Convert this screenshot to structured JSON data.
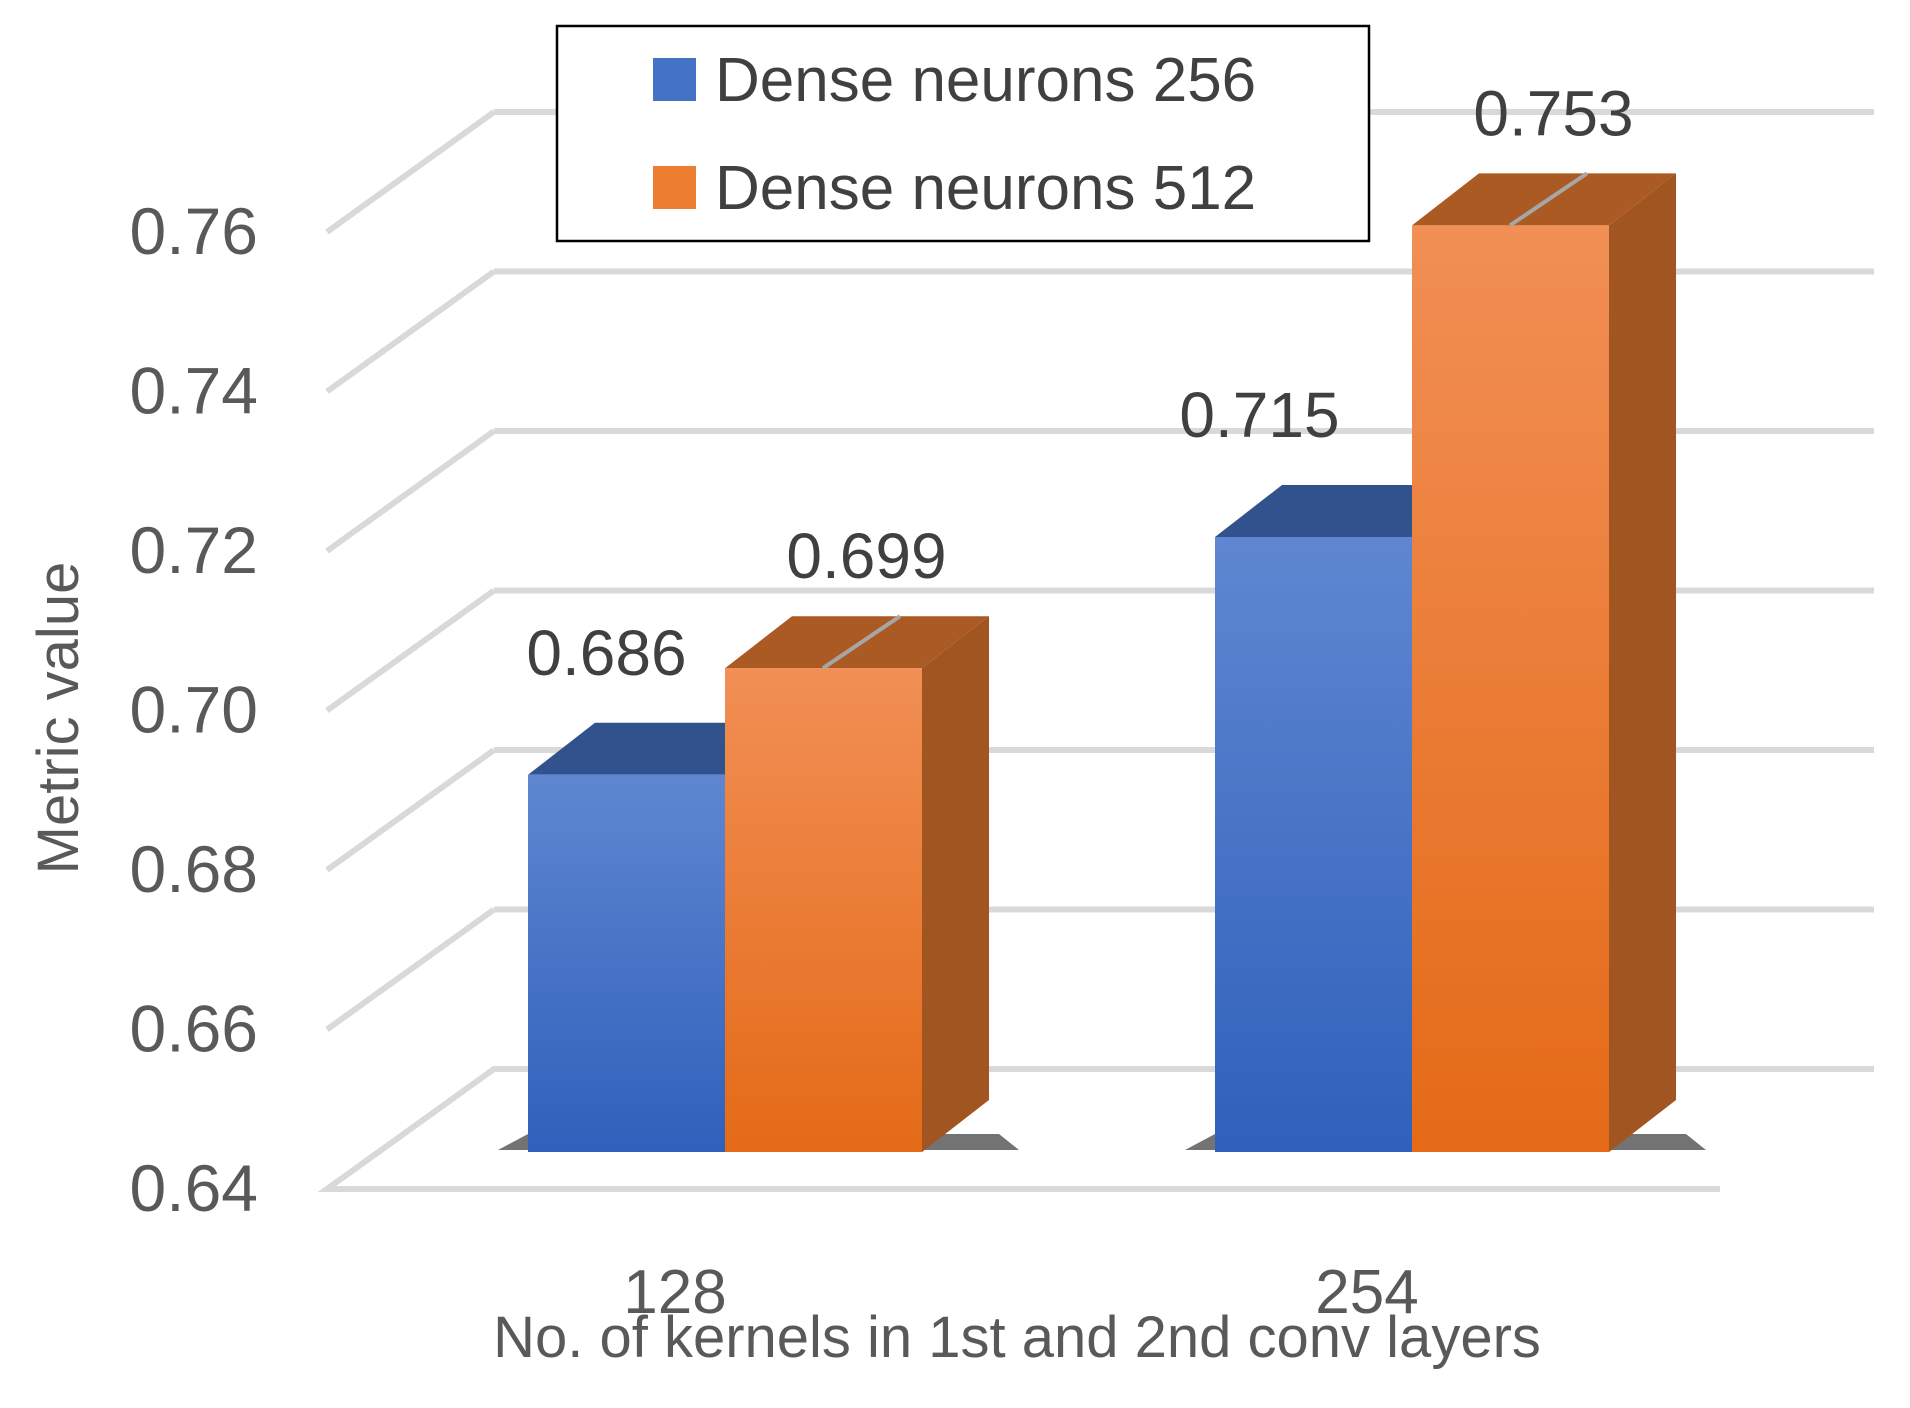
{
  "chart_data": {
    "type": "bar",
    "categories": [
      "128",
      "254"
    ],
    "series": [
      {
        "name": "Dense neurons 256",
        "values": [
          0.686,
          0.715
        ],
        "color": "#4472c4"
      },
      {
        "name": "Dense neurons 512",
        "values": [
          0.699,
          0.753
        ],
        "color": "#ed7d31"
      }
    ],
    "data_labels": [
      [
        "0.686",
        "0.715"
      ],
      [
        "0.699",
        "0.753"
      ]
    ],
    "xlabel": "No. of kernels in 1st and 2nd conv layers",
    "ylabel": "Metric value",
    "ylim": [
      0.64,
      0.76
    ],
    "yticks": [
      "0.64",
      "0.66",
      "0.68",
      "0.70",
      "0.72",
      "0.74",
      "0.76"
    ],
    "grid": true,
    "style": "3d",
    "legend_position": "top"
  }
}
